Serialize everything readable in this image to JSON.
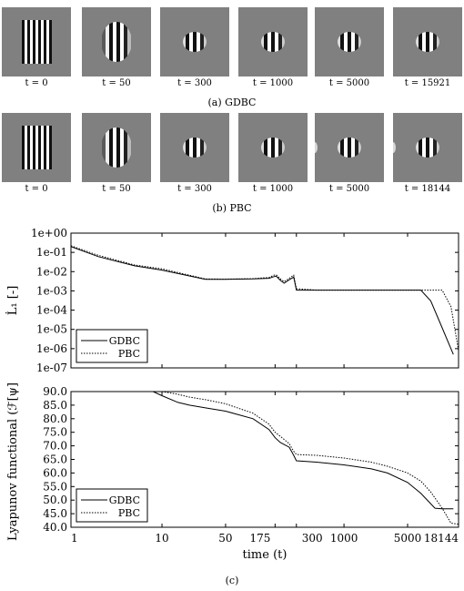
{
  "row_a": {
    "caption": "(a)  GDBC",
    "panels": [
      {
        "t_label": "t = 0",
        "pattern": "full-stripes"
      },
      {
        "t_label": "t = 50",
        "pattern": "circular-stripes"
      },
      {
        "t_label": "t = 300",
        "pattern": "localized-blob"
      },
      {
        "t_label": "t = 1000",
        "pattern": "localized-blob"
      },
      {
        "t_label": "t = 5000",
        "pattern": "localized-blob"
      },
      {
        "t_label": "t = 15921",
        "pattern": "localized-blob"
      }
    ]
  },
  "row_b": {
    "caption": "(b)  PBC",
    "panels": [
      {
        "t_label": "t = 0",
        "pattern": "full-stripes"
      },
      {
        "t_label": "t = 50",
        "pattern": "circular-stripes"
      },
      {
        "t_label": "t = 300",
        "pattern": "localized-blob"
      },
      {
        "t_label": "t = 1000",
        "pattern": "localized-blob"
      },
      {
        "t_label": "t = 5000",
        "pattern": "localized-blob-edge"
      },
      {
        "t_label": "t = 18144",
        "pattern": "localized-blob-edge"
      }
    ]
  },
  "figure_caption": "(c)",
  "chart_data": [
    {
      "type": "line",
      "xscale": "log",
      "yscale": "log",
      "xlim": [
        1,
        18144
      ],
      "ylim": [
        1e-07,
        1
      ],
      "ylabel": "L̇₁ [-]",
      "yticklabels": [
        "1e+00",
        "1e-01",
        "1e-02",
        "1e-03",
        "1e-04",
        "1e-05",
        "1e-06",
        "1e-07"
      ],
      "yticks": [
        1,
        0.1,
        0.01,
        0.001,
        0.0001,
        1e-05,
        1e-06,
        1e-07
      ],
      "legend": {
        "placement": "bottom-left"
      },
      "series": [
        {
          "name": "GDBC",
          "style": "solid",
          "x": [
            1,
            2,
            5,
            10,
            20,
            30,
            50,
            100,
            150,
            170,
            180,
            200,
            220,
            250,
            280,
            300,
            500,
            1000,
            2000,
            5000,
            7000,
            9000,
            12000,
            15921
          ],
          "y": [
            0.2,
            0.06,
            0.02,
            0.012,
            0.006,
            0.004,
            0.004,
            0.0042,
            0.0045,
            0.0055,
            0.0058,
            0.0035,
            0.0025,
            0.0038,
            0.0052,
            0.0011,
            0.0011,
            0.0011,
            0.0011,
            0.0011,
            0.0011,
            0.0003,
            1.2e-05,
            5e-07
          ]
        },
        {
          "name": "PBC",
          "style": "dotted",
          "x": [
            1,
            2,
            5,
            10,
            20,
            30,
            50,
            100,
            150,
            170,
            180,
            200,
            220,
            250,
            280,
            300,
            500,
            1000,
            2000,
            5000,
            7000,
            9000,
            12000,
            15000,
            18144
          ],
          "y": [
            0.22,
            0.07,
            0.022,
            0.014,
            0.0065,
            0.0042,
            0.0041,
            0.0043,
            0.005,
            0.0065,
            0.0068,
            0.0042,
            0.003,
            0.0045,
            0.0065,
            0.0013,
            0.0011,
            0.0011,
            0.0011,
            0.0011,
            0.0011,
            0.0011,
            0.0011,
            0.00015,
            8e-07
          ]
        }
      ]
    },
    {
      "type": "line",
      "xscale": "log",
      "xlim": [
        1,
        18144
      ],
      "ylim": [
        40,
        90
      ],
      "xlabel": "time (t)",
      "ylabel": "Lyapunov functional (ℱ[ψ])",
      "xticks": [
        1,
        10,
        50,
        175,
        300,
        1000,
        5000,
        18144
      ],
      "xticklabels": [
        "1",
        "10",
        "50",
        "175",
        "300",
        "1000",
        "5000",
        "18144"
      ],
      "yticks": [
        40,
        45,
        50,
        55,
        60,
        65,
        70,
        75,
        80,
        85,
        90
      ],
      "yticklabels": [
        "40.0",
        "45.0",
        "50.0",
        "55.0",
        "60.0",
        "65.0",
        "70.0",
        "75.0",
        "80.0",
        "85.0",
        "90.0"
      ],
      "legend": {
        "placement": "bottom-left"
      },
      "series": [
        {
          "name": "GDBC",
          "style": "solid",
          "x": [
            8,
            10,
            15,
            20,
            30,
            50,
            100,
            150,
            175,
            200,
            250,
            280,
            300,
            500,
            1000,
            2000,
            3000,
            5000,
            7000,
            10000,
            12000,
            15921
          ],
          "y": [
            90,
            88.5,
            86,
            85,
            84,
            82.8,
            80,
            76,
            73,
            71.2,
            69.5,
            66.5,
            64.5,
            64,
            63,
            61.5,
            60,
            56.5,
            52.5,
            47,
            46.8,
            46.8
          ]
        },
        {
          "name": "PBC",
          "style": "dotted",
          "x": [
            10,
            15,
            20,
            30,
            50,
            100,
            150,
            175,
            200,
            250,
            280,
            300,
            500,
            1000,
            2000,
            3000,
            5000,
            7000,
            9000,
            12000,
            15000,
            18144
          ],
          "y": [
            90,
            89,
            88,
            87,
            85.5,
            82,
            78,
            75,
            73.5,
            70.8,
            68,
            66.8,
            66.5,
            65.5,
            64,
            62.5,
            60,
            57,
            53,
            47,
            41.5,
            41.1
          ]
        }
      ]
    }
  ]
}
